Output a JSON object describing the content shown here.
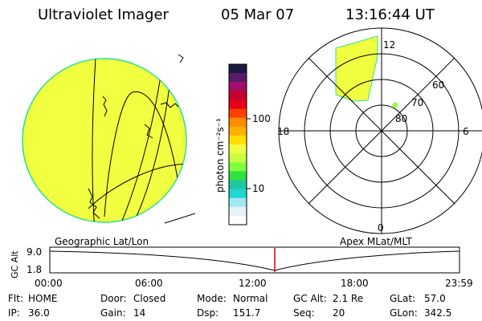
{
  "header": {
    "instrument": "Ultraviolet Imager",
    "date": "05 Mar 07",
    "time": "13:16:44 UT"
  },
  "colorbar": {
    "unit_label": "photon cm⁻²s⁻¹",
    "ticks": [
      "100",
      "10"
    ],
    "colors_top_to_bottom": [
      "#1a1a40",
      "#5a1a6a",
      "#a0106a",
      "#c80030",
      "#e8001a",
      "#ff4000",
      "#ff8c00",
      "#ffb000",
      "#ffe000",
      "#f0ff40",
      "#c8ff40",
      "#80ff40",
      "#30e040",
      "#20c8a0",
      "#20d8d0",
      "#a0e8f0",
      "#e8f0f8",
      "#ffffff"
    ]
  },
  "left_panel": {
    "label": "Geographic Lat/Lon",
    "disk_color": "#f0ff40",
    "edge_color": "#30e090"
  },
  "right_panel": {
    "label": "Apex MLat/MLT",
    "mlt_labels": {
      "top": "12",
      "left": "18",
      "right": "6",
      "bottom": "0"
    },
    "lat_labels": [
      "60",
      "70",
      "80"
    ]
  },
  "altitude_plot": {
    "ylabel": "GC Alt",
    "yticks": [
      "9.0",
      "1.8"
    ],
    "xticks": [
      "00:00",
      "06:00",
      "12:00",
      "18:00",
      "23:59"
    ],
    "marker_color": "#e00000"
  },
  "status": {
    "rows": [
      [
        {
          "key": "Flt:",
          "value": "HOME"
        },
        {
          "key": "Door:",
          "value": "Closed"
        },
        {
          "key": "Mode:",
          "value": "Normal"
        },
        {
          "key": "GC Alt:",
          "value": "2.1 Re"
        },
        {
          "key": "GLat:",
          "value": "57.0"
        }
      ],
      [
        {
          "key": "IP:",
          "value": "36.0"
        },
        {
          "key": "Gain:",
          "value": "14"
        },
        {
          "key": "Dsp:",
          "value": "151.7"
        },
        {
          "key": "Seq:",
          "value": "20"
        },
        {
          "key": "GLon:",
          "value": "342.5"
        }
      ]
    ]
  }
}
